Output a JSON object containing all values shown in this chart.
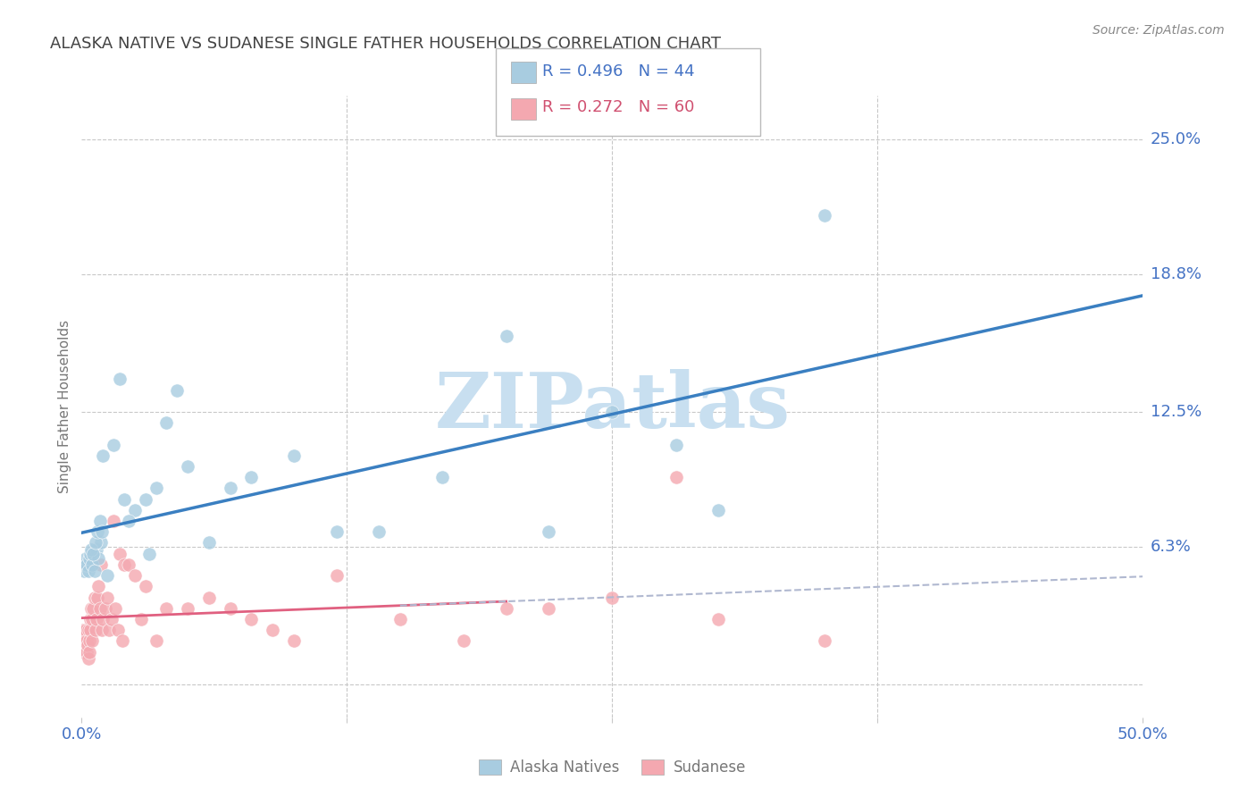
{
  "title": "ALASKA NATIVE VS SUDANESE SINGLE FATHER HOUSEHOLDS CORRELATION CHART",
  "source": "Source: ZipAtlas.com",
  "ylabel": "Single Father Households",
  "xlim": [
    0.0,
    50.0
  ],
  "ylim": [
    -1.5,
    27.0
  ],
  "plot_ylim": [
    0.0,
    25.0
  ],
  "alaska_R": 0.496,
  "alaska_N": 44,
  "sudanese_R": 0.272,
  "sudanese_N": 60,
  "alaska_scatter_color": "#a8cce0",
  "sudanese_scatter_color": "#f4a8b0",
  "alaska_line_color": "#3a7fc1",
  "sudanese_solid_color": "#e06080",
  "sudanese_dash_color": "#b0b8d0",
  "grid_color": "#c8c8c8",
  "tick_color": "#4472c4",
  "title_color": "#444444",
  "source_color": "#888888",
  "watermark_text": "ZIPatlas",
  "watermark_color": "#c8dff0",
  "ytick_positions": [
    0.0,
    6.3,
    12.5,
    18.8,
    25.0
  ],
  "ytick_labels": [
    "0.0%",
    "6.3%",
    "12.5%",
    "18.8%",
    "25.0%"
  ],
  "xtick_positions": [
    0.0,
    12.5,
    25.0,
    37.5,
    50.0
  ],
  "xtick_labels": [
    "0.0%",
    "",
    "",
    "",
    "50.0%"
  ],
  "alaska_x": [
    0.1,
    0.15,
    0.2,
    0.25,
    0.3,
    0.35,
    0.4,
    0.5,
    0.6,
    0.7,
    0.8,
    0.9,
    1.0,
    1.5,
    2.0,
    2.5,
    3.0,
    3.5,
    4.0,
    5.0,
    6.0,
    7.0,
    8.0,
    10.0,
    12.0,
    14.0,
    17.0,
    20.0,
    25.0,
    28.0,
    30.0,
    35.0,
    0.45,
    0.55,
    0.65,
    0.75,
    0.85,
    0.95,
    1.2,
    1.8,
    2.2,
    3.2,
    4.5,
    22.0
  ],
  "alaska_y": [
    5.2,
    5.5,
    5.8,
    5.5,
    5.2,
    5.8,
    6.0,
    5.5,
    5.2,
    6.2,
    5.8,
    6.5,
    10.5,
    11.0,
    8.5,
    8.0,
    8.5,
    9.0,
    12.0,
    10.0,
    6.5,
    9.0,
    9.5,
    10.5,
    7.0,
    7.0,
    9.5,
    16.0,
    12.5,
    11.0,
    8.0,
    21.5,
    6.2,
    6.0,
    6.5,
    7.0,
    7.5,
    7.0,
    5.0,
    14.0,
    7.5,
    6.0,
    13.5,
    7.0
  ],
  "sudanese_x": [
    0.05,
    0.08,
    0.1,
    0.12,
    0.15,
    0.18,
    0.2,
    0.22,
    0.25,
    0.28,
    0.3,
    0.32,
    0.35,
    0.38,
    0.4,
    0.42,
    0.45,
    0.48,
    0.5,
    0.55,
    0.6,
    0.65,
    0.7,
    0.75,
    0.8,
    0.85,
    0.9,
    0.95,
    1.0,
    1.1,
    1.2,
    1.3,
    1.4,
    1.5,
    1.6,
    1.7,
    1.8,
    1.9,
    2.0,
    2.2,
    2.5,
    2.8,
    3.0,
    3.5,
    4.0,
    5.0,
    6.0,
    7.0,
    8.0,
    9.0,
    10.0,
    12.0,
    15.0,
    18.0,
    20.0,
    25.0,
    28.0,
    30.0,
    35.0,
    22.0
  ],
  "sudanese_y": [
    2.5,
    2.0,
    1.5,
    2.0,
    1.8,
    2.2,
    2.5,
    1.5,
    2.0,
    1.8,
    1.2,
    2.5,
    2.0,
    1.5,
    3.0,
    2.5,
    3.5,
    2.0,
    3.0,
    3.5,
    4.0,
    2.5,
    3.0,
    4.0,
    4.5,
    3.5,
    5.5,
    2.5,
    3.0,
    3.5,
    4.0,
    2.5,
    3.0,
    7.5,
    3.5,
    2.5,
    6.0,
    2.0,
    5.5,
    5.5,
    5.0,
    3.0,
    4.5,
    2.0,
    3.5,
    3.5,
    4.0,
    3.5,
    3.0,
    2.5,
    2.0,
    5.0,
    3.0,
    2.0,
    3.5,
    4.0,
    9.5,
    3.0,
    2.0,
    3.5
  ]
}
